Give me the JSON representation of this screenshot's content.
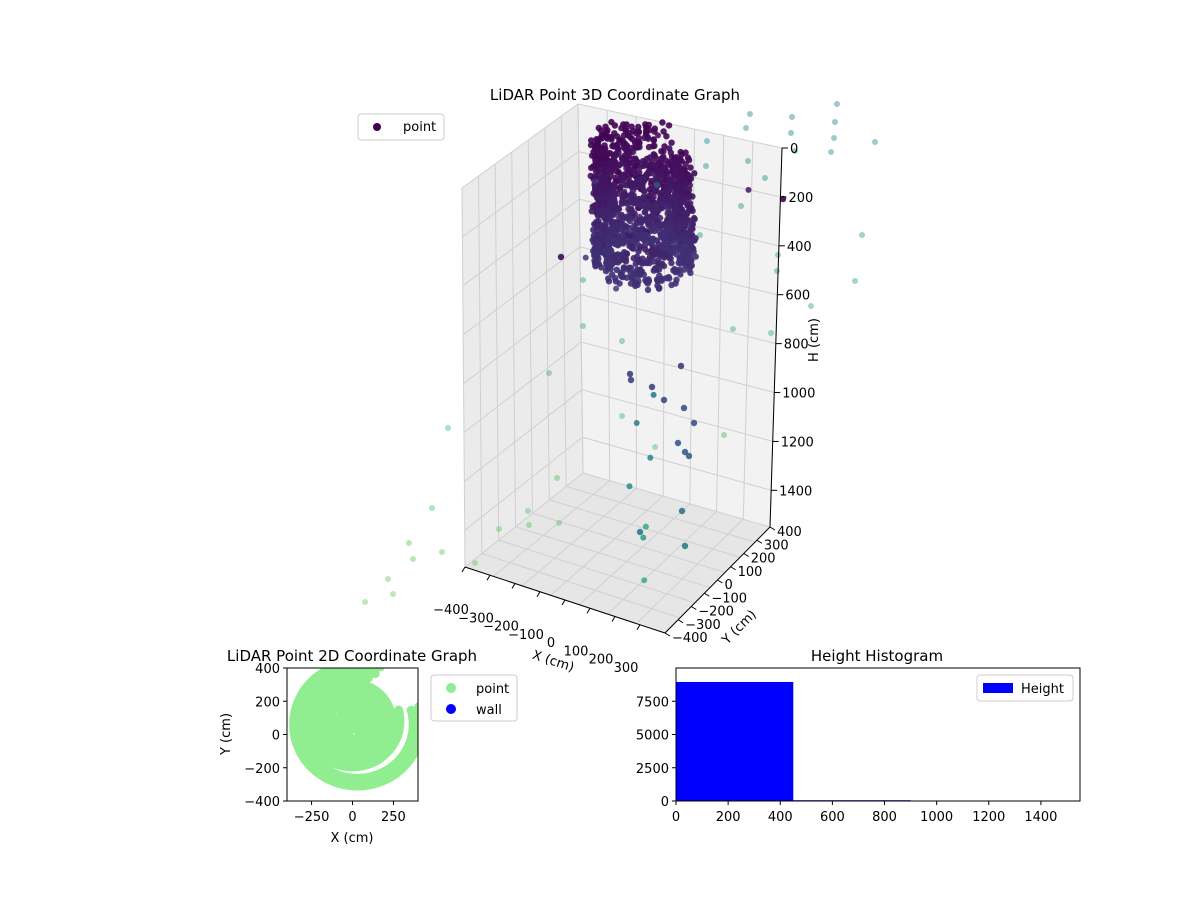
{
  "chart_data": [
    {
      "type": "scatter3d",
      "title": "LiDAR Point 3D Coordinate Graph",
      "xlabel": "X (cm)",
      "ylabel": "Y (cm)",
      "zlabel": "H (cm)",
      "xlim": [
        -400,
        400
      ],
      "ylim": [
        -400,
        400
      ],
      "zlim": [
        0,
        1550
      ],
      "z_inverted": true,
      "x_ticks": [
        "−400",
        "−300",
        "−200",
        "−100",
        "0",
        "100",
        "200",
        "300"
      ],
      "y_ticks": [
        "−400",
        "−300",
        "−200",
        "−100",
        "0",
        "100",
        "200",
        "300",
        "400"
      ],
      "z_ticks": [
        "0",
        "200",
        "400",
        "600",
        "800",
        "1000",
        "1200",
        "1400"
      ],
      "colormap": "viridis",
      "legend": {
        "entries": [
          "point"
        ],
        "placement": "top-left",
        "marker_color": "#440154"
      },
      "series": [
        {
          "name": "point",
          "description_cluster": "dense cylindrical cluster of points, H approx 0-500 cm",
          "sample_points": [
            {
              "x": -150,
              "y": 100,
              "h": 200
            },
            {
              "x": 0,
              "y": 150,
              "h": 300
            },
            {
              "x": 150,
              "y": 50,
              "h": 250
            },
            {
              "x": 50,
              "y": -100,
              "h": 450
            },
            {
              "x": -100,
              "y": -50,
              "h": 400
            },
            {
              "x": 100,
              "y": -150,
              "h": 350
            },
            {
              "x": 20,
              "y": 250,
              "h": 20
            },
            {
              "x": -50,
              "y": 300,
              "h": 80
            },
            {
              "x": 120,
              "y": 20,
              "h": 900
            },
            {
              "x": 80,
              "y": -30,
              "h": 1000
            },
            {
              "x": 150,
              "y": -60,
              "h": 1100
            },
            {
              "x": 100,
              "y": -120,
              "h": 1200
            },
            {
              "x": 60,
              "y": 50,
              "h": 1450
            },
            {
              "x": 200,
              "y": -200,
              "h": 1500
            },
            {
              "x": 230,
              "y": -250,
              "h": 1300
            },
            {
              "x": -300,
              "y": 350,
              "h": 350
            },
            {
              "x": 350,
              "y": 300,
              "h": 150
            }
          ]
        }
      ]
    },
    {
      "type": "scatter",
      "title": "LiDAR Point 2D Coordinate Graph",
      "xlabel": "X (cm)",
      "ylabel": "Y (cm)",
      "xlim": [
        -400,
        400
      ],
      "ylim": [
        -400,
        400
      ],
      "x_ticks": [
        "−250",
        "0",
        "250"
      ],
      "y_ticks": [
        "400",
        "200",
        "0",
        "−200",
        "−400"
      ],
      "legend": {
        "entries": [
          "point",
          "wall"
        ],
        "placement": "outside-right"
      },
      "series": [
        {
          "name": "point",
          "color": "#90ee90",
          "rings": [
            {
              "cx": 0,
              "cy": 80,
              "r": 140
            },
            {
              "cx": 0,
              "cy": 80,
              "r": 190
            },
            {
              "cx": 0,
              "cy": 80,
              "r": 240
            },
            {
              "cx": 0,
              "cy": 80,
              "r": 290
            },
            {
              "cx": 30,
              "cy": 60,
              "r": 340
            },
            {
              "cx": 30,
              "cy": 60,
              "r": 390
            }
          ]
        },
        {
          "name": "wall",
          "color": "#0000ff",
          "values": []
        }
      ]
    },
    {
      "type": "histogram",
      "title": "Height Histogram",
      "xlim": [
        0,
        1550
      ],
      "ylim": [
        0,
        10000
      ],
      "x_ticks": [
        "0",
        "200",
        "400",
        "600",
        "800",
        "1000",
        "1200",
        "1400"
      ],
      "y_ticks": [
        "0",
        "2500",
        "5000",
        "7500"
      ],
      "legend": {
        "entries": [
          "Height"
        ],
        "placement": "top-right"
      },
      "series": [
        {
          "name": "Height",
          "color": "#0000ff",
          "bins": [
            {
              "x0": 0,
              "x1": 450,
              "count": 8950
            },
            {
              "x0": 450,
              "x1": 900,
              "count": 60
            },
            {
              "x0": 900,
              "x1": 1350,
              "count": 10
            },
            {
              "x0": 1350,
              "x1": 1550,
              "count": 5
            }
          ]
        }
      ]
    }
  ]
}
